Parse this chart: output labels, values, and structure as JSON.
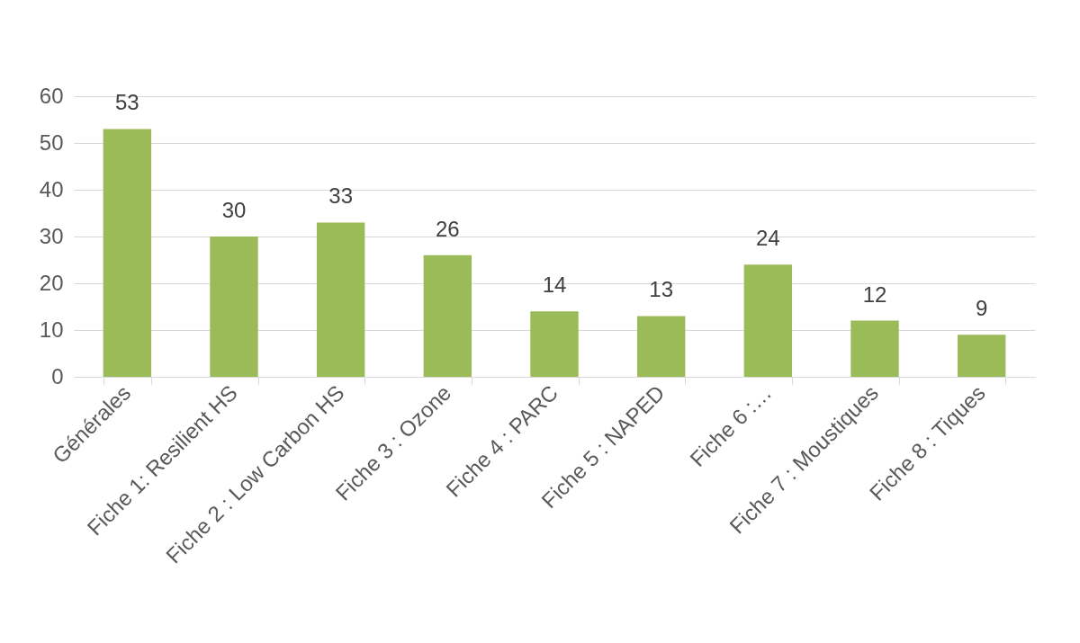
{
  "chart_data": {
    "type": "bar",
    "categories": [
      "Générales",
      "Fiche 1: Resilient HS",
      "Fiche 2 : Low Carbon HS",
      "Fiche 3 : Ozone",
      "Fiche 4 : PARC",
      "Fiche 5 : NAPED",
      "Fiche 6 :…",
      "Fiche 7 : Moustiques",
      "Fiche 8 : Tiques"
    ],
    "values": [
      53,
      30,
      33,
      26,
      14,
      13,
      24,
      12,
      9
    ],
    "color": "#9bbb59",
    "ylim": [
      0,
      60
    ],
    "yticks": [
      0,
      10,
      20,
      30,
      40,
      50,
      60
    ],
    "grid": "y",
    "data_labels": true
  }
}
